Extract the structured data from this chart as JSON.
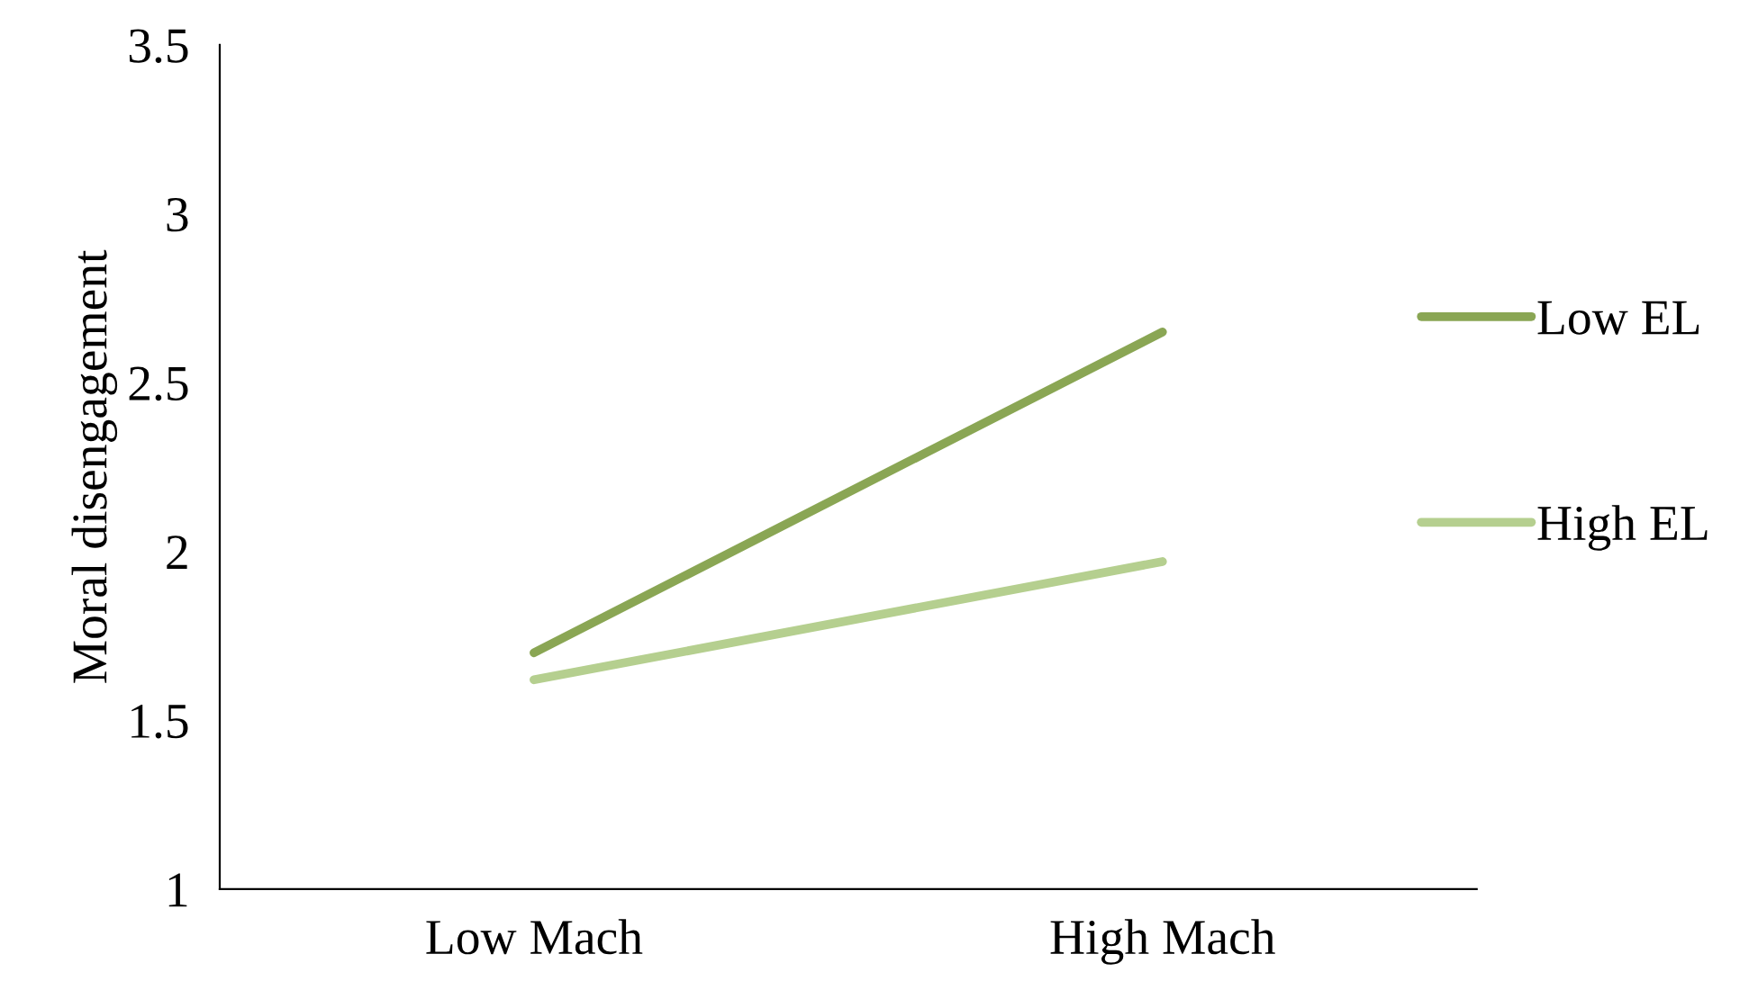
{
  "chart_data": {
    "type": "line",
    "ylabel": "Moral disengagement",
    "categories": [
      "Low Mach",
      "High Mach"
    ],
    "series": [
      {
        "name": "Low EL",
        "color": "#8aa654",
        "values": [
          1.7,
          2.65
        ]
      },
      {
        "name": "High EL",
        "color": "#b5cf8f",
        "values": [
          1.62,
          1.97
        ]
      }
    ],
    "ylim": [
      1,
      3.5
    ],
    "yticks": [
      1,
      1.5,
      2,
      2.5,
      3,
      3.5
    ],
    "grid": false,
    "legend": "right",
    "marker": "none",
    "line_style": "solid"
  }
}
